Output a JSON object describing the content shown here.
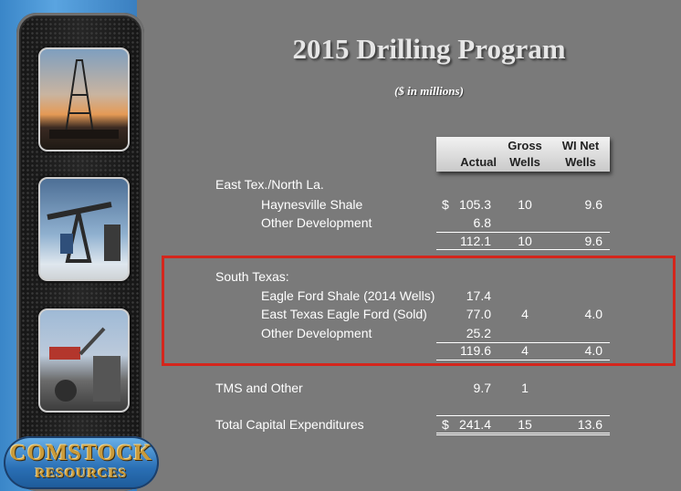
{
  "title": "2015 Drilling Program",
  "subtitle": "($ in millions)",
  "logo": {
    "line1": "COMSTOCK",
    "line2": "RESOURCES"
  },
  "columns": {
    "actual": "Actual",
    "gross_1": "Gross",
    "gross_2": "Wells",
    "wi_1": "WI Net",
    "wi_2": "Wells"
  },
  "rows": {
    "east_tex": {
      "label": "East Tex./North La."
    },
    "haynesville": {
      "label": "Haynesville Shale",
      "dollar": "$",
      "actual": "105.3",
      "gross": "10",
      "wi": "9.6"
    },
    "east_other": {
      "label": "Other Development",
      "actual": "6.8"
    },
    "east_total": {
      "actual": "112.1",
      "gross": "10",
      "wi": "9.6"
    },
    "south_tex": {
      "label": "South Texas:"
    },
    "eagle_ford": {
      "label": "Eagle Ford Shale (2014 Wells)",
      "actual": "17.4"
    },
    "et_eagle": {
      "label": "East Texas Eagle Ford (Sold)",
      "actual": "77.0",
      "gross": "4",
      "wi": "4.0"
    },
    "south_other": {
      "label": "Other Development",
      "actual": "25.2"
    },
    "south_total": {
      "actual": "119.6",
      "gross": "4",
      "wi": "4.0"
    },
    "tms": {
      "label": "TMS and Other",
      "actual": "9.7",
      "gross": "1"
    },
    "total": {
      "label": "Total Capital Expenditures",
      "dollar": "$",
      "actual": "241.4",
      "gross": "15",
      "wi": "13.6"
    }
  },
  "colors": {
    "highlight": "#d4261c",
    "background": "#7a7a7a",
    "accent_blue": "#3a86c8"
  }
}
